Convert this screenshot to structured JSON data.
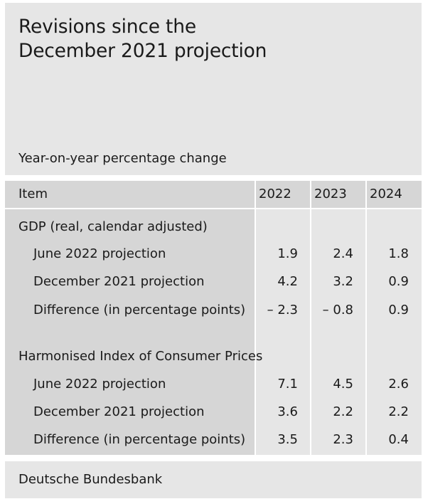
{
  "title": "Revisions since the\nDecember 2021 projection",
  "subtitle": "Year-on-year percentage change",
  "header": {
    "item": "Item",
    "years": [
      "2022",
      "2023",
      "2024"
    ]
  },
  "sections": [
    {
      "heading": "GDP (real, calendar adjusted)",
      "rows": [
        {
          "label": "June 2022 projection",
          "values": [
            "1.9",
            "2.4",
            "1.8"
          ]
        },
        {
          "label": "December 2021 projection",
          "values": [
            "4.2",
            "3.2",
            "0.9"
          ]
        },
        {
          "label": "Difference (in percentage points)",
          "values": [
            "– 2.3",
            "– 0.8",
            "0.9"
          ]
        }
      ]
    },
    {
      "heading": "Harmonised Index of Consumer Prices",
      "rows": [
        {
          "label": "June 2022 projection",
          "values": [
            "7.1",
            "4.5",
            "2.6"
          ]
        },
        {
          "label": "December 2021 projection",
          "values": [
            "3.6",
            "2.2",
            "2.2"
          ]
        },
        {
          "label": "Difference (in percentage points)",
          "values": [
            "3.5",
            "2.3",
            "0.4"
          ]
        }
      ]
    }
  ],
  "source": "Deutsche Bundesbank"
}
